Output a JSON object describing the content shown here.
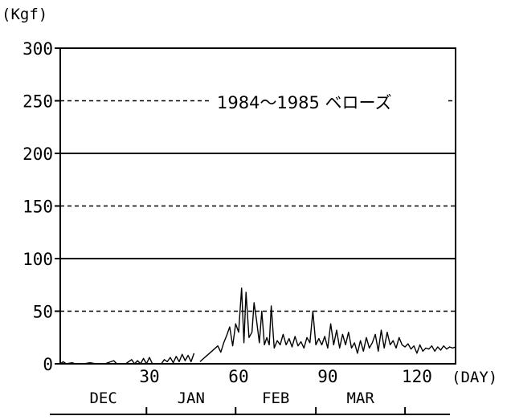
{
  "chart_data": {
    "type": "line",
    "title": "",
    "annotation": "1984〜1985 ベローズ",
    "ylabel": "(Kgf)",
    "xlabel": "(DAY)",
    "xlim": [
      0,
      133
    ],
    "ylim": [
      0,
      300
    ],
    "yticks": [
      0,
      50,
      100,
      150,
      200,
      250,
      300
    ],
    "ytick_labels": [
      "0",
      "50",
      "100",
      "150",
      "200",
      "250",
      "300"
    ],
    "xticks": [
      30,
      60,
      90,
      120
    ],
    "xtick_labels": [
      "30",
      "60",
      "90",
      "120"
    ],
    "solid_grid_y": [
      100,
      200
    ],
    "dashed_grid_y": [
      50,
      150,
      250
    ],
    "months": [
      {
        "label": "DEC",
        "start": 0,
        "end": 29
      },
      {
        "label": "JAN",
        "start": 29,
        "end": 59
      },
      {
        "label": "FEB",
        "start": 59,
        "end": 86
      },
      {
        "label": "MAR",
        "start": 86,
        "end": 116
      }
    ],
    "month_boundaries": [
      29,
      59,
      86,
      116
    ],
    "series": [
      {
        "name": "",
        "segments": [
          [
            [
              0,
              0
            ],
            [
              1,
              2
            ],
            [
              2,
              0
            ],
            [
              4,
              1
            ],
            [
              5,
              0
            ],
            [
              8,
              0
            ],
            [
              10,
              1
            ],
            [
              12,
              0
            ],
            [
              15,
              0
            ],
            [
              18,
              3
            ],
            [
              19,
              0
            ],
            [
              22,
              0
            ],
            [
              24,
              4
            ],
            [
              25,
              0
            ],
            [
              26,
              3
            ],
            [
              27,
              0
            ],
            [
              28,
              5
            ],
            [
              29,
              0
            ],
            [
              30,
              6
            ],
            [
              31,
              0
            ]
          ],
          [
            [
              34,
              0
            ],
            [
              35,
              4
            ],
            [
              36,
              2
            ],
            [
              37,
              6
            ],
            [
              38,
              1
            ],
            [
              39,
              7
            ],
            [
              40,
              2
            ],
            [
              41,
              9
            ],
            [
              42,
              3
            ],
            [
              43,
              8
            ],
            [
              44,
              2
            ],
            [
              45,
              10
            ]
          ],
          [
            [
              47,
              2
            ],
            [
              49,
              7
            ],
            [
              51,
              12
            ],
            [
              53,
              17
            ],
            [
              54,
              11
            ],
            [
              55,
              20
            ],
            [
              56,
              27
            ],
            [
              57,
              35
            ],
            [
              58,
              17
            ],
            [
              59,
              38
            ],
            [
              60,
              30
            ],
            [
              61,
              72
            ],
            [
              61.8,
              20
            ],
            [
              62.5,
              68
            ],
            [
              63.5,
              25
            ],
            [
              64.5,
              30
            ],
            [
              65.2,
              58
            ],
            [
              66,
              42
            ],
            [
              67,
              20
            ],
            [
              67.8,
              50
            ],
            [
              68.7,
              18
            ],
            [
              69.5,
              25
            ],
            [
              70.3,
              18
            ],
            [
              71,
              55
            ],
            [
              72,
              15
            ],
            [
              73,
              22
            ],
            [
              74,
              18
            ],
            [
              75,
              28
            ],
            [
              76,
              18
            ],
            [
              77,
              24
            ],
            [
              78,
              16
            ],
            [
              79,
              26
            ],
            [
              80,
              17
            ],
            [
              81,
              21
            ],
            [
              82,
              15
            ],
            [
              83,
              25
            ],
            [
              84,
              20
            ],
            [
              85,
              50
            ],
            [
              86,
              18
            ],
            [
              87,
              24
            ],
            [
              88,
              18
            ],
            [
              89,
              26
            ],
            [
              90,
              15
            ],
            [
              91,
              38
            ],
            [
              92,
              18
            ],
            [
              93,
              32
            ],
            [
              94,
              15
            ],
            [
              95,
              28
            ],
            [
              96,
              18
            ],
            [
              97,
              30
            ],
            [
              98,
              15
            ],
            [
              99,
              20
            ],
            [
              100,
              10
            ],
            [
              101,
              22
            ],
            [
              102,
              12
            ],
            [
              103,
              25
            ],
            [
              104,
              15
            ],
            [
              105,
              20
            ],
            [
              106,
              28
            ],
            [
              107,
              12
            ],
            [
              108,
              32
            ],
            [
              109,
              15
            ],
            [
              110,
              30
            ],
            [
              111,
              18
            ],
            [
              112,
              22
            ],
            [
              113,
              15
            ],
            [
              114,
              25
            ],
            [
              115,
              18
            ],
            [
              116,
              16
            ],
            [
              117,
              19
            ],
            [
              118,
              14
            ],
            [
              119,
              17
            ],
            [
              120,
              10
            ],
            [
              121,
              18
            ],
            [
              122,
              12
            ],
            [
              123,
              15
            ],
            [
              124,
              14
            ],
            [
              125,
              17
            ],
            [
              126,
              12
            ],
            [
              127,
              16
            ],
            [
              128,
              13
            ],
            [
              129,
              17
            ],
            [
              130,
              14
            ],
            [
              131,
              16
            ],
            [
              132,
              15
            ],
            [
              133,
              16
            ]
          ]
        ]
      }
    ]
  }
}
